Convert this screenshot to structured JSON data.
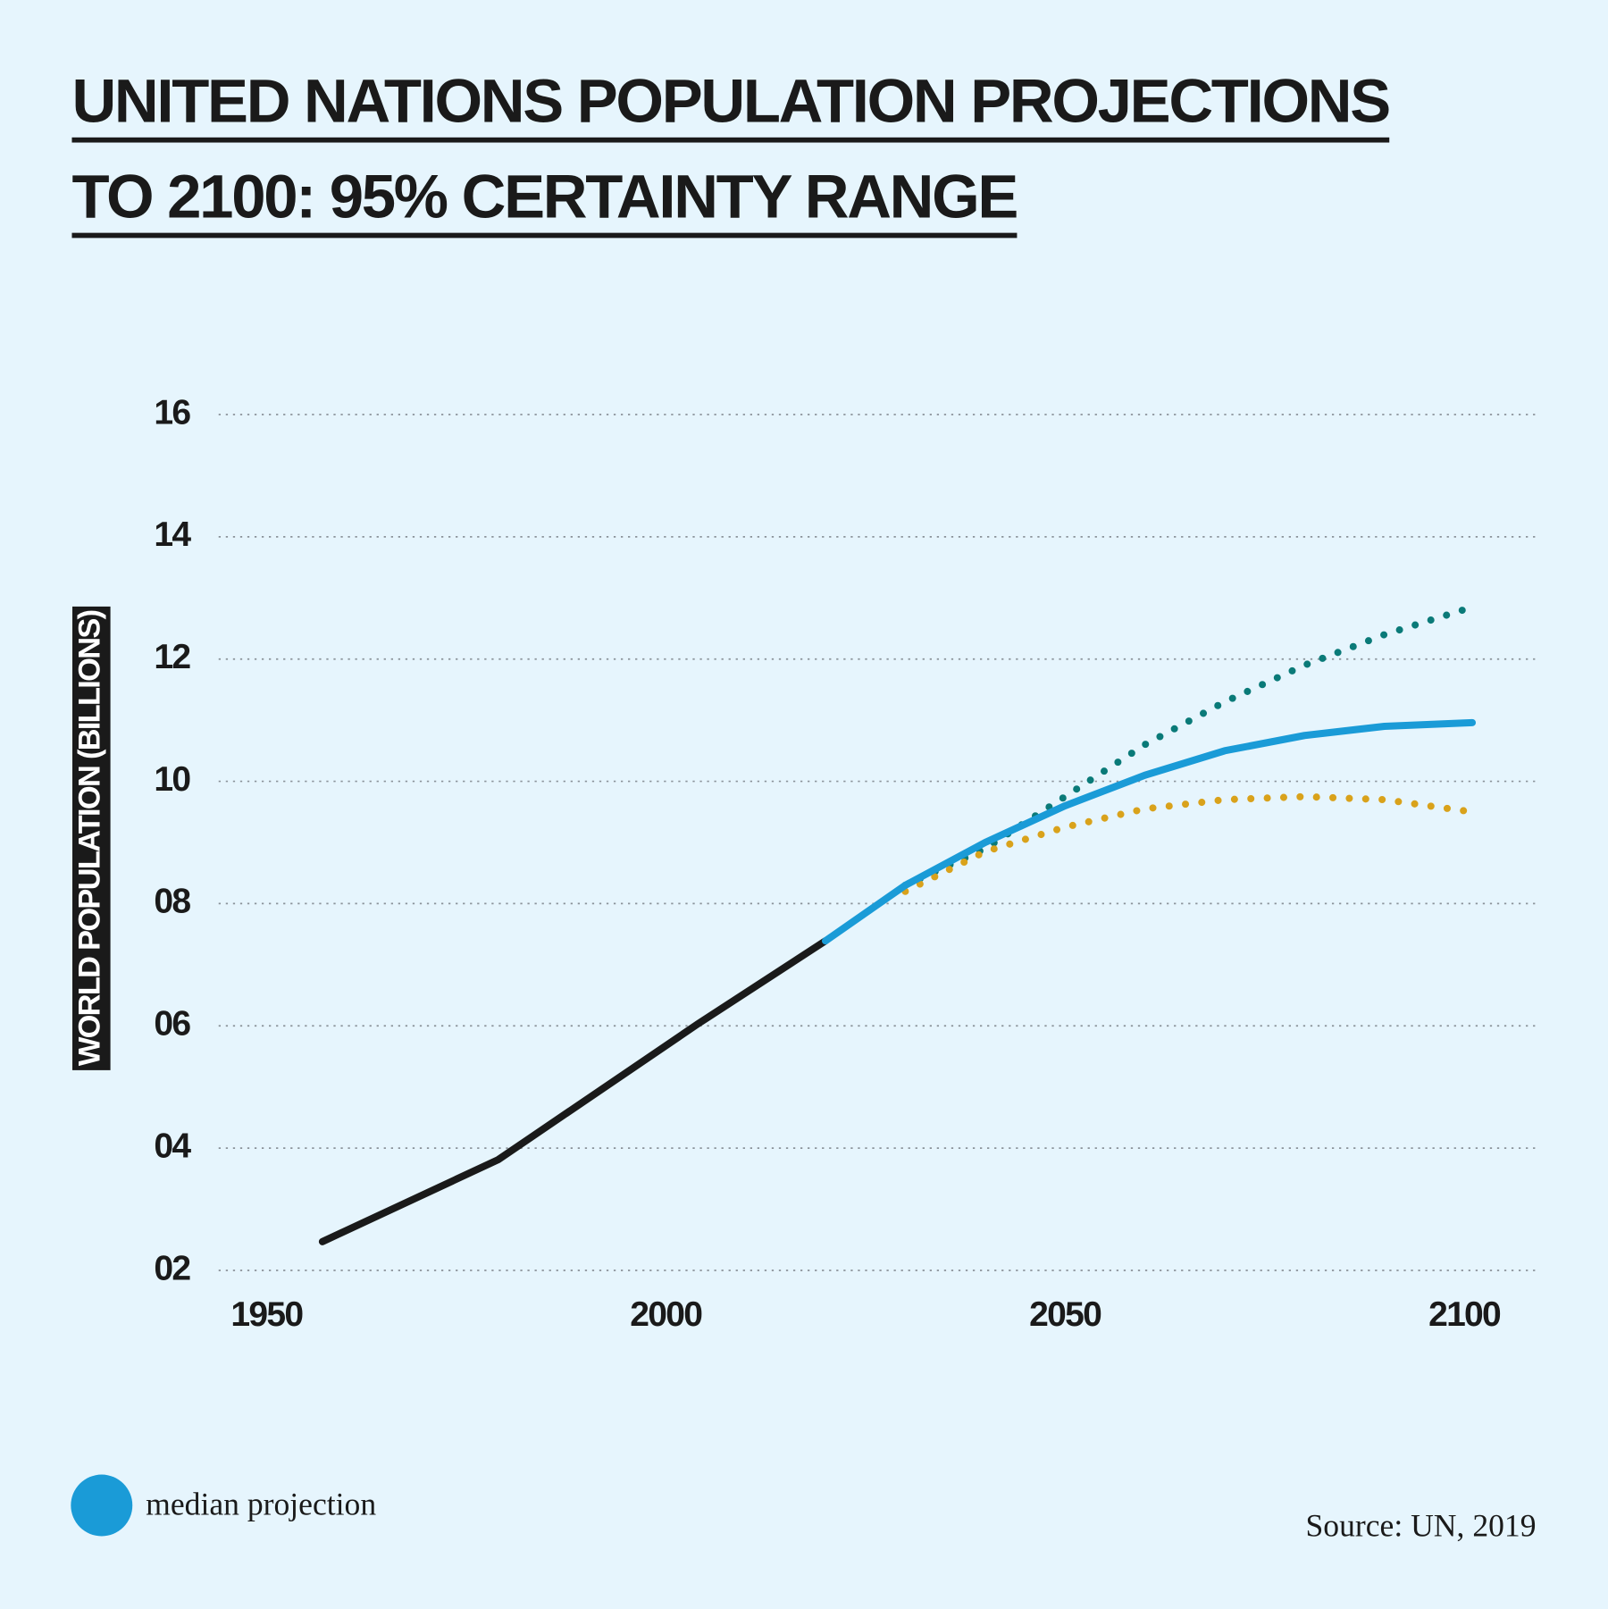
{
  "chart_data": {
    "type": "line",
    "title": [
      "UNITED NATIONS POPULATION PROJECTIONS",
      "TO 2100: 95% CERTAINTY RANGE"
    ],
    "y_label": "WORLD POPULATION (BILLIONS)",
    "source": "Source: UN, 2019",
    "xlim": [
      1944,
      2109
    ],
    "xticks": [
      1950,
      2000,
      2050,
      2100
    ],
    "ylim": [
      2,
      16
    ],
    "yticks": [
      {
        "value": 2,
        "label": "02"
      },
      {
        "value": 4,
        "label": "04"
      },
      {
        "value": 6,
        "label": "06"
      },
      {
        "value": 8,
        "label": "08"
      },
      10,
      12,
      14,
      16
    ],
    "grid": true,
    "series": [
      {
        "color": "#1a1a1a",
        "style": "solid",
        "x": [
          1957,
          1979,
          2004,
          2020
        ],
        "values": [
          2.47,
          3.81,
          6.03,
          7.39
        ]
      },
      {
        "color": "#0a7a78",
        "style": "dotted",
        "x": [
          2030,
          2040,
          2050,
          2060,
          2070,
          2080,
          2090,
          2101
        ],
        "values": [
          8.3,
          8.9,
          9.75,
          10.6,
          11.3,
          11.9,
          12.4,
          12.85
        ]
      },
      {
        "color": "#d9a21b",
        "style": "dotted",
        "x": [
          2030,
          2040,
          2050,
          2060,
          2070,
          2080,
          2090,
          2101
        ],
        "values": [
          8.2,
          8.85,
          9.25,
          9.55,
          9.7,
          9.75,
          9.7,
          9.5
        ]
      },
      {
        "name": "median projection",
        "color": "#1a9bd7",
        "style": "solid",
        "x": [
          2020,
          2030,
          2040,
          2050,
          2060,
          2070,
          2080,
          2090,
          2101
        ],
        "values": [
          7.39,
          8.3,
          9.0,
          9.6,
          10.1,
          10.5,
          10.75,
          10.9,
          10.96
        ]
      }
    ]
  }
}
